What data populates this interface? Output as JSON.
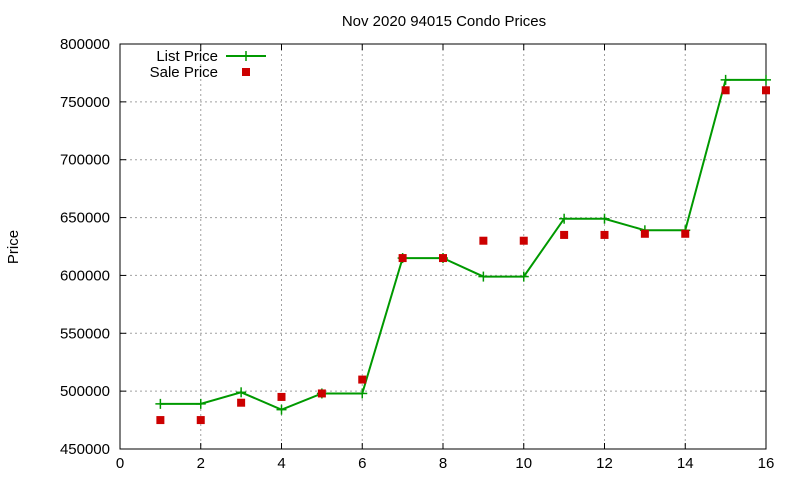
{
  "chart_data": {
    "type": "line",
    "title": "Nov 2020 94015 Condo Prices",
    "xlabel": "",
    "ylabel": "Price",
    "xlim": [
      0,
      16
    ],
    "ylim": [
      450000,
      800000
    ],
    "x_ticks": [
      0,
      2,
      4,
      6,
      8,
      10,
      12,
      14,
      16
    ],
    "y_ticks": [
      450000,
      500000,
      550000,
      600000,
      650000,
      700000,
      750000,
      800000
    ],
    "grid": true,
    "legend_position": "top-left",
    "series": [
      {
        "name": "List Price",
        "style": "line-with-plus-markers",
        "color": "#009900",
        "x": [
          1,
          2,
          3,
          4,
          5,
          6,
          7,
          8,
          9,
          10,
          11,
          12,
          13,
          14,
          15,
          16
        ],
        "values": [
          489000,
          489000,
          499000,
          484000,
          498000,
          498000,
          615000,
          615000,
          599000,
          599000,
          649000,
          649000,
          639000,
          639000,
          769000,
          769000
        ]
      },
      {
        "name": "Sale Price",
        "style": "square-points",
        "color": "#cc0000",
        "x": [
          1,
          2,
          3,
          4,
          5,
          6,
          7,
          8,
          9,
          10,
          11,
          12,
          13,
          14,
          15,
          16
        ],
        "values": [
          475000,
          475000,
          490000,
          495000,
          498000,
          510000,
          615000,
          615000,
          630000,
          630000,
          635000,
          635000,
          636000,
          636000,
          760000,
          760000
        ]
      }
    ]
  }
}
